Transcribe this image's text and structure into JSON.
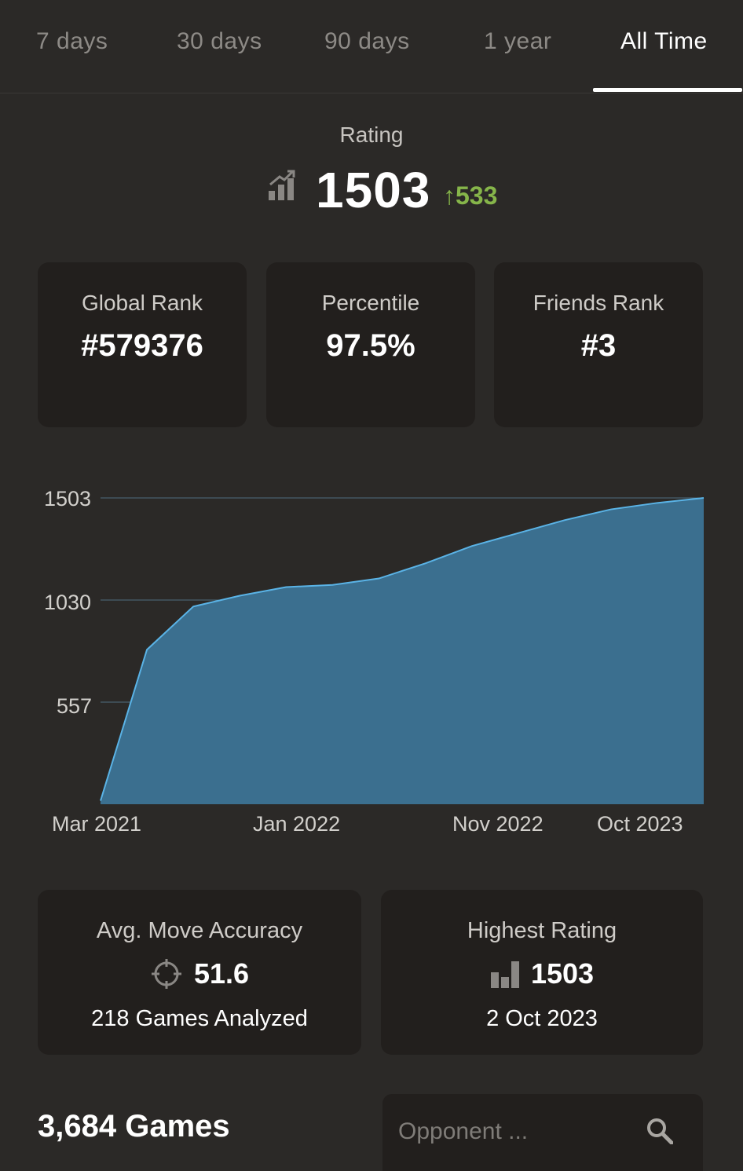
{
  "tabs": [
    {
      "label": "7 days"
    },
    {
      "label": "30 days"
    },
    {
      "label": "90 days"
    },
    {
      "label": "1 year"
    },
    {
      "label": "All Time",
      "active": true
    }
  ],
  "rating": {
    "label": "Rating",
    "value": "1503",
    "delta": "533",
    "delta_color": "#86b54a",
    "icon": "rating-trend-icon"
  },
  "rank_cards": [
    {
      "title": "Global Rank",
      "value": "#579376"
    },
    {
      "title": "Percentile",
      "value": "97.5%"
    },
    {
      "title": "Friends Rank",
      "value": "#3"
    }
  ],
  "chart_data": {
    "type": "area",
    "y_ticks": [
      "1503",
      "1030",
      "557"
    ],
    "x_ticks": [
      "Mar 2021",
      "Jan 2022",
      "Nov 2022",
      "Oct 2023"
    ],
    "ylim": [
      84,
      1503
    ],
    "x": [
      "Mar 2021",
      "Apr 2021",
      "Jun 2021",
      "Aug 2021",
      "Oct 2021",
      "Jan 2022",
      "Mar 2022",
      "May 2022",
      "Jul 2022",
      "Nov 2022",
      "Jan 2023",
      "Apr 2023",
      "Jul 2023",
      "Oct 2023"
    ],
    "values": [
      100,
      800,
      1000,
      1050,
      1090,
      1100,
      1130,
      1200,
      1280,
      1340,
      1400,
      1450,
      1480,
      1503
    ],
    "fill_color": "#3b6f8f",
    "line_color": "#5ab3e6",
    "grid": true
  },
  "stats": {
    "accuracy": {
      "title": "Avg. Move Accuracy",
      "value": "51.6",
      "sub": "218 Games Analyzed",
      "icon": "crosshair-icon"
    },
    "highest": {
      "title": "Highest Rating",
      "value": "1503",
      "sub": "2 Oct 2023",
      "icon": "bar-chart-icon"
    }
  },
  "games": {
    "title": "3,684 Games"
  },
  "search": {
    "placeholder": "Opponent ...",
    "icon": "search-icon"
  }
}
